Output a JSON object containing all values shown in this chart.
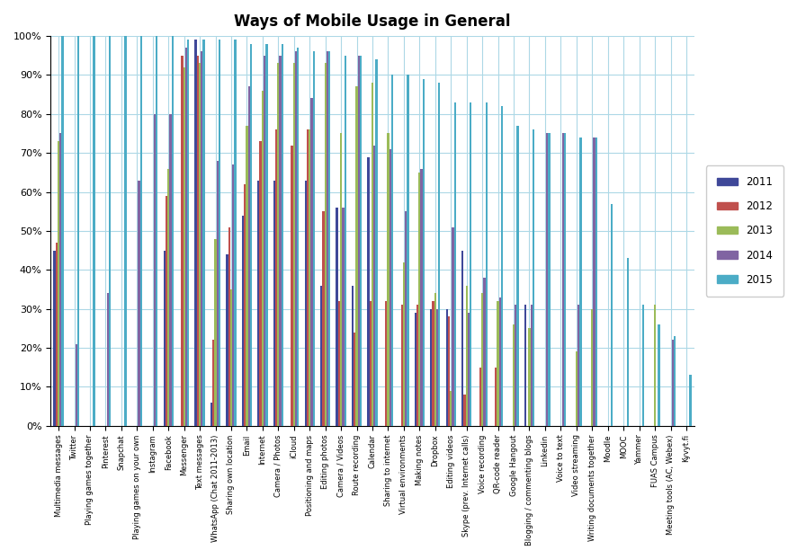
{
  "title": "Ways of Mobile Usage in General",
  "categories": [
    "Multimedia messages",
    "Twitter",
    "Playing games together",
    "Pinterest",
    "Snapchat",
    "Playing games on your own",
    "Instagram",
    "Facebook",
    "Messenger",
    "Text messages",
    "WhatsApp (Chat 2011-2013)",
    "Sharing own location",
    "Email",
    "Internet",
    "Camera / Photos",
    "iCloud",
    "Positioning and maps",
    "Editing photos",
    "Camera / Videos",
    "Route recording",
    "Calendar",
    "Sharing to internet",
    "Virtual environments",
    "Making notes",
    "Dropbox",
    "Editing videos",
    "Skype (prev. Internet calls)",
    "Voice recording",
    "QR-code reader",
    "Google Hangout",
    "Blogging / commenting blogs",
    "Linkedin",
    "Voice to text",
    "Video streaming",
    "Writing documents together",
    "Moodle",
    "MOOC",
    "Yammer",
    "FUAS Campus",
    "Meeting tools (AC, Webex)",
    "Kyvyt.fi"
  ],
  "years": [
    "2011",
    "2012",
    "2013",
    "2014",
    "2015"
  ],
  "colors": [
    "#3F4899",
    "#C0504D",
    "#9BBB59",
    "#8064A2",
    "#4BACC6"
  ],
  "data": {
    "2011": [
      45,
      0,
      0,
      0,
      0,
      0,
      0,
      45,
      0,
      99,
      6,
      44,
      54,
      63,
      63,
      0,
      63,
      36,
      56,
      36,
      69,
      0,
      0,
      29,
      30,
      30,
      45,
      0,
      0,
      0,
      31,
      0,
      0,
      0,
      0,
      0,
      0,
      0,
      0,
      0,
      0
    ],
    "2012": [
      47,
      0,
      0,
      0,
      0,
      0,
      0,
      59,
      95,
      95,
      22,
      51,
      62,
      73,
      76,
      72,
      76,
      55,
      32,
      24,
      32,
      32,
      31,
      31,
      32,
      28,
      8,
      15,
      15,
      0,
      0,
      0,
      0,
      0,
      0,
      0,
      0,
      0,
      0,
      0,
      0
    ],
    "2013": [
      73,
      0,
      0,
      0,
      0,
      0,
      0,
      66,
      92,
      93,
      48,
      35,
      77,
      86,
      93,
      93,
      76,
      93,
      75,
      87,
      88,
      75,
      42,
      65,
      34,
      9,
      36,
      34,
      32,
      26,
      25,
      0,
      0,
      19,
      30,
      0,
      0,
      0,
      31,
      0,
      0
    ],
    "2014": [
      75,
      21,
      0,
      34,
      0,
      63,
      80,
      80,
      97,
      96,
      68,
      67,
      87,
      95,
      95,
      96,
      84,
      96,
      56,
      95,
      72,
      71,
      55,
      66,
      30,
      51,
      29,
      38,
      33,
      31,
      31,
      75,
      75,
      31,
      74,
      0,
      0,
      0,
      0,
      22,
      0
    ],
    "2015": [
      100,
      100,
      100,
      100,
      100,
      100,
      100,
      100,
      99,
      99,
      99,
      99,
      98,
      98,
      98,
      97,
      96,
      96,
      95,
      95,
      94,
      90,
      90,
      89,
      88,
      83,
      83,
      83,
      82,
      77,
      76,
      75,
      75,
      74,
      74,
      57,
      43,
      31,
      26,
      23,
      13
    ]
  },
  "ylim": [
    0,
    100
  ],
  "bar_width": 0.13,
  "figsize": [
    8.86,
    6.22
  ],
  "dpi": 100
}
